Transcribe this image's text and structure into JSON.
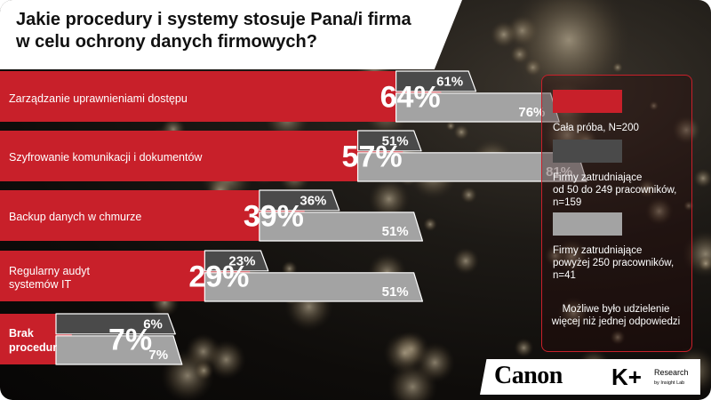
{
  "title": "Jakie procedury i systemy stosuje Pana/i firma\nw celu ochrony danych firmowych?",
  "colors": {
    "total": "#c8202a",
    "mid": "#4a4a4a",
    "large": "#a3a3a3"
  },
  "chart_data": {
    "type": "bar",
    "categories": [
      "Zarządzanie uprawnieniami dostępu",
      "Szyfrowanie komunikacji i dokumentów",
      "Backup danych w chmurze",
      "Regularny audyt systemów IT",
      "Brak procedur"
    ],
    "series": [
      {
        "name": "Cała próba, N=200",
        "values": [
          64,
          57,
          39,
          29,
          7
        ]
      },
      {
        "name": "Firmy zatrudniające od 50 do 249 pracowników, n=159",
        "values": [
          61,
          51,
          36,
          23,
          6
        ]
      },
      {
        "name": "Firmy zatrudniające powyżej 250 pracowników, n=41",
        "values": [
          76,
          81,
          51,
          51,
          7
        ]
      }
    ],
    "unit": "%",
    "legend_position": "right"
  },
  "legend": {
    "items": [
      {
        "label": "Cała próba, N=200"
      },
      {
        "label": "Firmy zatrudniające\nod 50 do 249 pracowników,\nn=159"
      },
      {
        "label": "Firmy zatrudniające\npowyżej 250 pracowników,\nn=41"
      }
    ],
    "note": "Możliwe było udzielenie\nwięcej niż jednej odpowiedzi"
  },
  "logos": {
    "canon": "Canon",
    "kplus": "K+",
    "research": "Research",
    "insight": "by Insight Lab"
  }
}
